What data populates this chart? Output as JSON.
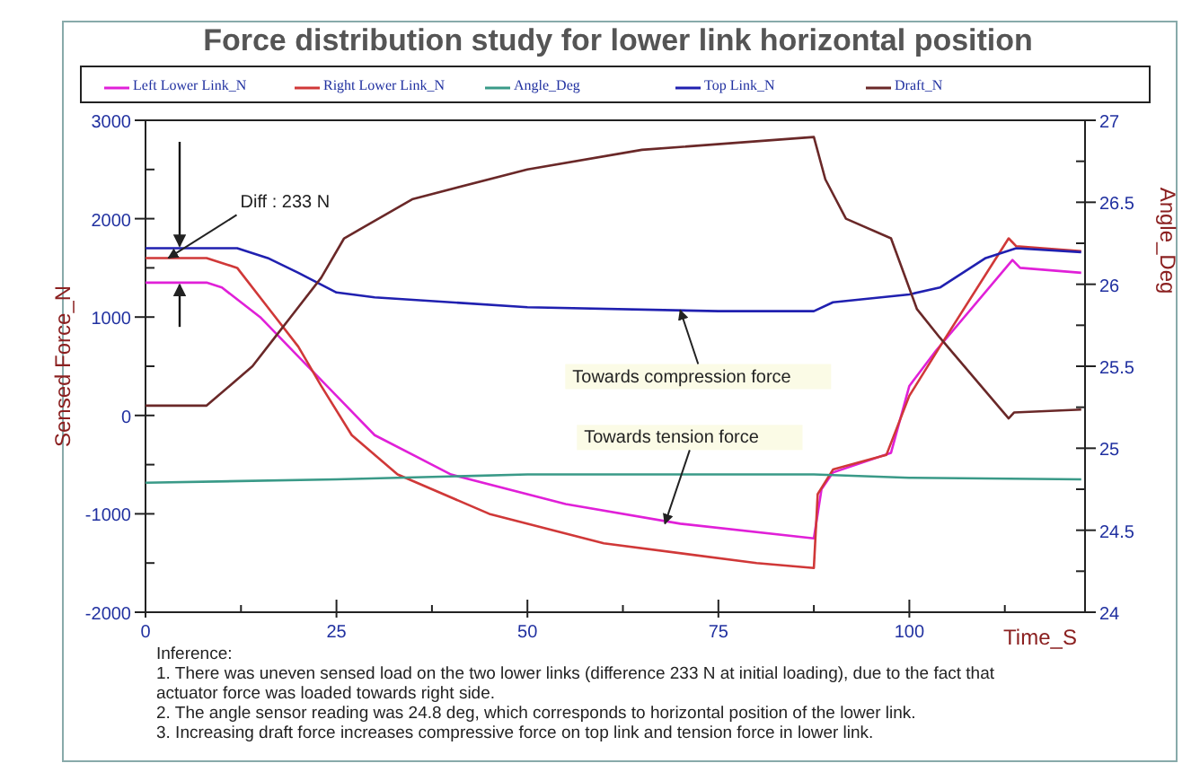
{
  "chart_data": {
    "type": "line",
    "title": "Force distribution study for lower link horizontal position",
    "xlabel": "Time_S",
    "ylabel": "Sensed Force_N",
    "y2label": "Angle_Deg",
    "xlim": [
      0,
      123
    ],
    "xticks": [
      0,
      {
        "value": 12.5,
        "label": null
      },
      25,
      {
        "value": 37.5,
        "label": null
      },
      50,
      {
        "value": 62.5,
        "label": null
      },
      75,
      {
        "value": 87.5,
        "label": null
      },
      100,
      {
        "value": 112.5,
        "label": null
      }
    ],
    "ylim": [
      -2000,
      3000
    ],
    "yticks": [
      -2000,
      {
        "value": -1500,
        "label": null
      },
      -1000,
      {
        "value": -500,
        "label": null
      },
      0,
      {
        "value": 500,
        "label": null
      },
      1000,
      {
        "value": 1500,
        "label": null
      },
      2000,
      {
        "value": 2500,
        "label": null
      },
      3000
    ],
    "y2lim": [
      24,
      27
    ],
    "y2ticks": [
      24,
      {
        "value": 24.25,
        "label": null
      },
      24.5,
      {
        "value": 24.75,
        "label": null
      },
      25,
      {
        "value": 25.25,
        "label": null
      },
      25.5,
      {
        "value": 25.75,
        "label": null
      },
      26,
      {
        "value": 26.25,
        "label": null
      },
      26.5,
      {
        "value": 26.75,
        "label": null
      },
      27
    ],
    "legend": "top",
    "grid": false,
    "line_style": "solid",
    "series": [
      {
        "name": "Left Lower Link_N",
        "color": "#e020d8",
        "x": [
          0,
          8,
          10,
          15,
          20,
          25,
          30,
          40,
          55,
          70,
          87.5,
          88.5,
          90,
          97.6,
          100,
          103.5,
          113.5,
          114.5,
          122.5
        ],
        "values": [
          1350,
          1350,
          1300,
          1000,
          600,
          200,
          -200,
          -600,
          -900,
          -1100,
          -1250,
          -750,
          -580,
          -380,
          300,
          660,
          1580,
          1500,
          1450
        ]
      },
      {
        "name": "Right Lower Link_N",
        "color": "#d03838",
        "x": [
          0,
          8,
          12,
          16,
          20,
          23,
          27,
          33,
          45,
          60,
          80,
          87.5,
          88,
          90,
          97,
          100,
          104,
          113,
          114,
          122.5
        ],
        "values": [
          1600,
          1600,
          1500,
          1100,
          700,
          300,
          -200,
          -600,
          -1000,
          -1300,
          -1500,
          -1550,
          -800,
          -550,
          -400,
          200,
          700,
          1800,
          1720,
          1670
        ]
      },
      {
        "name": "Angle_Deg",
        "color": "#3a9a88",
        "axis": "y2",
        "x": [
          0,
          25,
          50,
          87.5,
          100,
          122.5
        ],
        "values": [
          24.79,
          24.81,
          24.84,
          24.84,
          24.82,
          24.81
        ]
      },
      {
        "name": "Top Link_N",
        "color": "#2020b0",
        "x": [
          0,
          12,
          16,
          20,
          25,
          30,
          50,
          75,
          87.5,
          90,
          100,
          104,
          110,
          114,
          122.5
        ],
        "values": [
          1700,
          1700,
          1600,
          1450,
          1250,
          1200,
          1100,
          1060,
          1060,
          1150,
          1230,
          1300,
          1600,
          1700,
          1660
        ]
      },
      {
        "name": "Draft_N",
        "color": "#6a2828",
        "x": [
          0,
          8,
          11,
          14,
          17,
          19,
          23,
          26,
          35,
          50,
          65,
          87.5,
          89,
          91.7,
          97.6,
          101,
          104,
          113,
          113.7,
          122.5
        ],
        "values": [
          100,
          100,
          300,
          500,
          800,
          1000,
          1400,
          1800,
          2200,
          2500,
          2700,
          2830,
          2400,
          2000,
          1800,
          1080,
          790,
          -30,
          30,
          60
        ]
      }
    ],
    "annotations": [
      {
        "text": "Diff : 233 N",
        "x": 3,
        "y": 1600
      },
      {
        "text": "Towards compression force",
        "x": 70,
        "y": 1070
      },
      {
        "text": "Towards tension force",
        "x": 68,
        "y": -1100
      },
      "Inference:",
      "1. There was uneven sensed load on the two lower links (difference 233 N at initial loading), due to the fact that actuator force was loaded towards right side.",
      "2. The angle sensor reading was 24.8 deg, which corresponds to horizontal position of the lower link.",
      "3. Increasing draft force increases compressive force on top link and tension force in lower link."
    ]
  }
}
